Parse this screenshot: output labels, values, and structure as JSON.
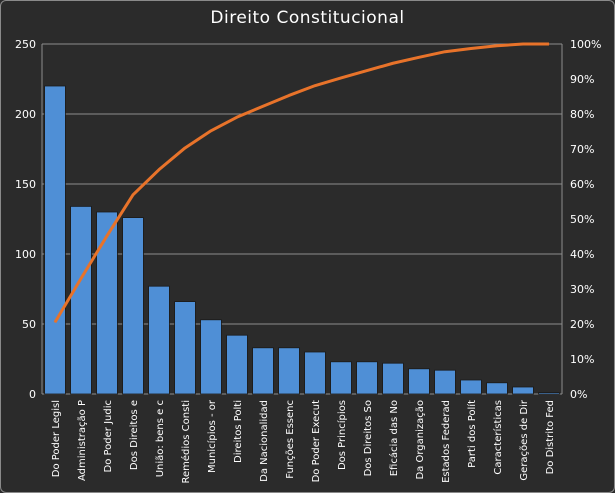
{
  "chart_data": {
    "type": "bar",
    "title": "Direito Constitucional",
    "xlabel": "",
    "ylabel": "",
    "categories": [
      "Do Poder Legisl",
      "Administração P",
      "Do Poder Judic",
      "Dos Direitos e",
      "União: bens e c",
      "Remédios Consti",
      "Municípios - or",
      "Direitos Polti",
      "Da Nacionalidad",
      "Funções Essenc",
      "Do Poder Execut",
      "Dos Princípios",
      "Dos Direitos So",
      "Eficácia das No",
      "Da Organização",
      "Estados Federad",
      "Parti dos Polít",
      "Características",
      "Gerações de Dir",
      "Do Distrito Fed"
    ],
    "series": [
      {
        "type": "bar",
        "values": [
          220,
          134,
          130,
          126,
          77,
          66,
          53,
          42,
          33,
          33,
          30,
          23,
          23,
          22,
          18,
          17,
          10,
          8,
          5,
          1
        ]
      },
      {
        "type": "line",
        "axis": "right",
        "values": [
          20.5,
          33,
          45.2,
          56.9,
          64.1,
          70.3,
          75.2,
          79.1,
          82.2,
          85.3,
          88.1,
          90.3,
          92.4,
          94.5,
          96.2,
          97.8,
          98.7,
          99.5,
          100,
          100
        ]
      }
    ],
    "ylim": [
      0,
      250
    ],
    "y_ticks": [
      0,
      50,
      100,
      150,
      200,
      250
    ],
    "y2lim": [
      0,
      100
    ],
    "y2_ticks": [
      "0%",
      "10%",
      "20%",
      "30%",
      "40%",
      "50%",
      "60%",
      "70%",
      "80%",
      "90%",
      "100%"
    ],
    "grid": true,
    "colors": {
      "bar": "#4f8fd6",
      "line": "#e8732a",
      "grid": "#8c8c8c",
      "text": "#ffffff",
      "background": "#2b2b2b"
    }
  }
}
